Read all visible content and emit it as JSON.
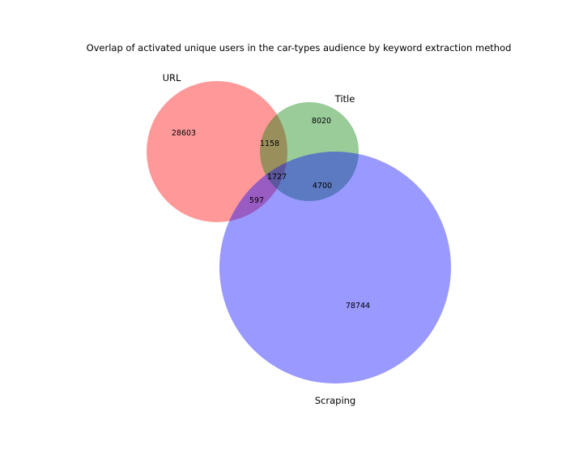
{
  "title": "Overlap of activated unique users in the car-types audience by keyword extraction method",
  "chart_data": {
    "type": "venn",
    "sets": [
      {
        "key": "url",
        "name": "URL",
        "color": "#ff0000"
      },
      {
        "key": "title",
        "name": "Title",
        "color": "#008000"
      },
      {
        "key": "scraping",
        "name": "Scraping",
        "color": "#0000ff"
      }
    ],
    "regions": {
      "url_only": 28603,
      "title_only": 8020,
      "scraping_only": 78744,
      "url_title": 1158,
      "url_scraping": 597,
      "title_scraping": 4700,
      "url_title_scraping": 1727
    },
    "region_labels": {
      "url_only": "28603",
      "title_only": "8020",
      "scraping_only": "78744",
      "url_title": "1158",
      "url_scraping": "597",
      "title_scraping": "4700",
      "url_title_scraping": "1727"
    },
    "fill_opacity": 0.4
  }
}
